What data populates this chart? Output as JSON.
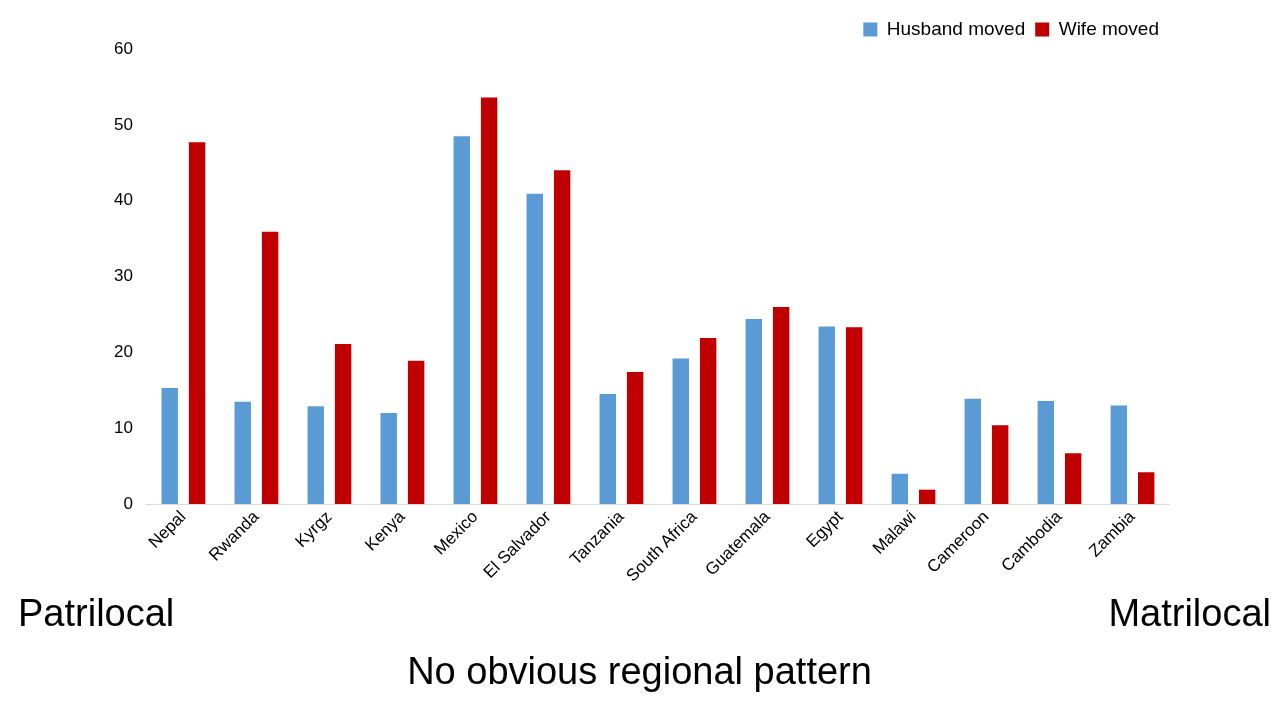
{
  "chart_data": {
    "type": "bar",
    "categories": [
      "Nepal",
      "Rwanda",
      "Kyrgz",
      "Kenya",
      "Mexico",
      "El Salvador",
      "Tanzania",
      "South Africa",
      "Guatemala",
      "Egypt",
      "Malawi",
      "Cameroon",
      "Cambodia",
      "Zambia"
    ],
    "series": [
      {
        "name": "Husband moved",
        "color": "#5b9bd5",
        "values": [
          15.3,
          13.5,
          12.9,
          12.0,
          48.5,
          40.9,
          14.5,
          19.2,
          24.4,
          23.4,
          4.0,
          13.9,
          13.6,
          13.0
        ]
      },
      {
        "name": "Wife moved",
        "color": "#c00000",
        "values": [
          47.7,
          35.9,
          21.1,
          18.9,
          53.6,
          44.0,
          17.4,
          21.9,
          26.0,
          23.3,
          1.9,
          10.4,
          6.7,
          4.2
        ]
      }
    ],
    "ylim": [
      0,
      60
    ],
    "yticks": [
      0,
      10,
      20,
      30,
      40,
      50,
      60
    ],
    "grid": false,
    "legend": "top right",
    "annotations": [
      "Patrilocal",
      "Matrilocal",
      "No obvious regional pattern"
    ]
  }
}
